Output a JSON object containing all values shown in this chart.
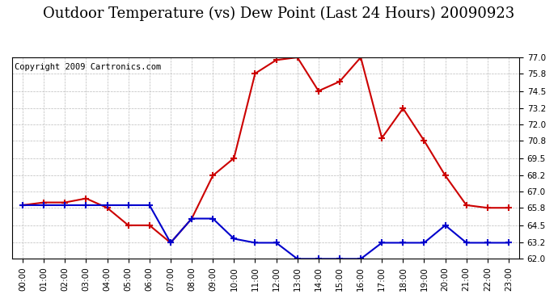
{
  "title": "Outdoor Temperature (vs) Dew Point (Last 24 Hours) 20090923",
  "copyright": "Copyright 2009 Cartronics.com",
  "hours": [
    "00:00",
    "01:00",
    "02:00",
    "03:00",
    "04:00",
    "05:00",
    "06:00",
    "07:00",
    "08:00",
    "09:00",
    "10:00",
    "11:00",
    "12:00",
    "13:00",
    "14:00",
    "15:00",
    "16:00",
    "17:00",
    "18:00",
    "19:00",
    "20:00",
    "21:00",
    "22:00",
    "23:00"
  ],
  "temp": [
    66.0,
    66.2,
    66.2,
    66.5,
    65.8,
    64.5,
    64.5,
    63.2,
    65.0,
    68.2,
    69.5,
    75.8,
    76.8,
    77.0,
    74.5,
    75.2,
    77.0,
    71.0,
    73.2,
    70.8,
    68.2,
    66.0,
    65.8,
    65.8
  ],
  "dew": [
    66.0,
    66.0,
    66.0,
    66.0,
    66.0,
    66.0,
    66.0,
    63.2,
    65.0,
    65.0,
    63.5,
    63.2,
    63.2,
    62.0,
    62.0,
    62.0,
    62.0,
    63.2,
    63.2,
    63.2,
    64.5,
    63.2,
    63.2,
    63.2
  ],
  "ylim": [
    62.0,
    77.0
  ],
  "yticks": [
    62.0,
    63.2,
    64.5,
    65.8,
    67.0,
    68.2,
    69.5,
    70.8,
    72.0,
    73.2,
    74.5,
    75.8,
    77.0
  ],
  "temp_color": "#cc0000",
  "dew_color": "#0000cc",
  "grid_color": "#bbbbbb",
  "bg_color": "#ffffff",
  "plot_bg": "#ffffff",
  "title_fontsize": 13,
  "copyright_fontsize": 7.5
}
